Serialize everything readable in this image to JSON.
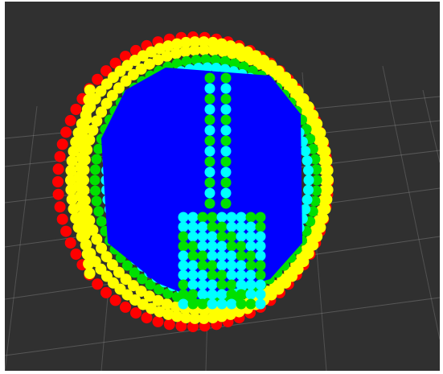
{
  "viewer": {
    "background": "#303030",
    "grid_color": "#a0a0a0"
  },
  "cloud": {
    "point_colors": {
      "far_rim": "#ff0000",
      "rim": "#ffff00",
      "mid_ring": "#00e000",
      "inner_ring": "#00ffff",
      "interior": "#0000ff"
    },
    "visible_bands": [
      "far_rim",
      "rim",
      "mid_ring",
      "inner_ring",
      "interior"
    ]
  }
}
